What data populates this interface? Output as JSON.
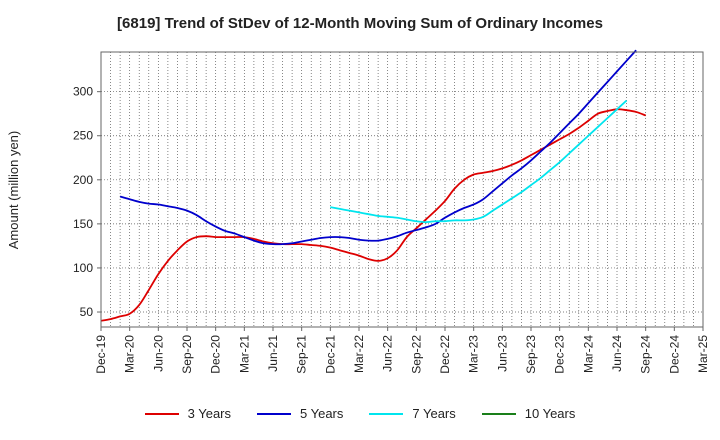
{
  "chart_data": {
    "type": "line",
    "title": "[6819]  Trend of StDev of 12-Month Moving Sum of Ordinary Incomes",
    "xlabel": "",
    "ylabel": "Amount (million yen)",
    "ylim": [
      33,
      345
    ],
    "x_start": "Dec-19",
    "x_end": "Mar-25",
    "x_tick_labels": [
      "Dec-19",
      "Mar-20",
      "Jun-20",
      "Sep-20",
      "Dec-20",
      "Mar-21",
      "Jun-21",
      "Sep-21",
      "Dec-21",
      "Mar-22",
      "Jun-22",
      "Sep-22",
      "Dec-22",
      "Mar-23",
      "Jun-23",
      "Sep-23",
      "Dec-23",
      "Mar-24",
      "Jun-24",
      "Sep-24",
      "Dec-24",
      "Mar-25"
    ],
    "y_ticks": [
      50,
      100,
      150,
      200,
      250,
      300
    ],
    "grid": true,
    "legend_position": "bottom",
    "series": [
      {
        "name": "3 Years",
        "color": "#dd0000",
        "points": [
          [
            0,
            40
          ],
          [
            1,
            42
          ],
          [
            2,
            45
          ],
          [
            3,
            48
          ],
          [
            4,
            58
          ],
          [
            5,
            75
          ],
          [
            6,
            93
          ],
          [
            7,
            108
          ],
          [
            8,
            120
          ],
          [
            9,
            130
          ],
          [
            10,
            135
          ],
          [
            11,
            136
          ],
          [
            12,
            135
          ],
          [
            13,
            135
          ],
          [
            14,
            135
          ],
          [
            15,
            135
          ],
          [
            16,
            133
          ],
          [
            17,
            130
          ],
          [
            18,
            128
          ],
          [
            19,
            127
          ],
          [
            20,
            127
          ],
          [
            21,
            127
          ],
          [
            22,
            126
          ],
          [
            23,
            125
          ],
          [
            24,
            123
          ],
          [
            25,
            120
          ],
          [
            26,
            117
          ],
          [
            27,
            114
          ],
          [
            28,
            110
          ],
          [
            29,
            108
          ],
          [
            30,
            111
          ],
          [
            31,
            120
          ],
          [
            32,
            135
          ],
          [
            33,
            145
          ],
          [
            34,
            155
          ],
          [
            35,
            165
          ],
          [
            36,
            176
          ],
          [
            37,
            190
          ],
          [
            38,
            200
          ],
          [
            39,
            206
          ],
          [
            40,
            208
          ],
          [
            41,
            210
          ],
          [
            42,
            213
          ],
          [
            43,
            217
          ],
          [
            44,
            222
          ],
          [
            45,
            228
          ],
          [
            46,
            234
          ],
          [
            47,
            240
          ],
          [
            48,
            246
          ],
          [
            49,
            252
          ],
          [
            50,
            259
          ],
          [
            51,
            267
          ],
          [
            52,
            275
          ],
          [
            53,
            278
          ],
          [
            54,
            280
          ],
          [
            55,
            279
          ],
          [
            56,
            277
          ],
          [
            57,
            273
          ]
        ]
      },
      {
        "name": "5 Years",
        "color": "#0000cc",
        "points": [
          [
            2,
            181
          ],
          [
            3,
            178
          ],
          [
            4,
            175
          ],
          [
            5,
            173
          ],
          [
            6,
            172
          ],
          [
            7,
            170
          ],
          [
            8,
            168
          ],
          [
            9,
            165
          ],
          [
            10,
            160
          ],
          [
            11,
            153
          ],
          [
            12,
            147
          ],
          [
            13,
            142
          ],
          [
            14,
            139
          ],
          [
            15,
            135
          ],
          [
            16,
            131
          ],
          [
            17,
            128
          ],
          [
            18,
            127
          ],
          [
            19,
            127
          ],
          [
            20,
            128
          ],
          [
            21,
            130
          ],
          [
            22,
            132
          ],
          [
            23,
            134
          ],
          [
            24,
            135
          ],
          [
            25,
            135
          ],
          [
            26,
            134
          ],
          [
            27,
            132
          ],
          [
            28,
            131
          ],
          [
            29,
            131
          ],
          [
            30,
            133
          ],
          [
            31,
            136
          ],
          [
            32,
            140
          ],
          [
            33,
            143
          ],
          [
            34,
            146
          ],
          [
            35,
            150
          ],
          [
            36,
            157
          ],
          [
            37,
            163
          ],
          [
            38,
            168
          ],
          [
            39,
            172
          ],
          [
            40,
            178
          ],
          [
            41,
            187
          ],
          [
            42,
            196
          ],
          [
            43,
            205
          ],
          [
            44,
            213
          ],
          [
            45,
            222
          ],
          [
            46,
            232
          ],
          [
            47,
            242
          ],
          [
            48,
            253
          ],
          [
            49,
            264
          ],
          [
            50,
            275
          ],
          [
            51,
            287
          ],
          [
            52,
            299
          ],
          [
            53,
            311
          ],
          [
            54,
            323
          ],
          [
            55,
            335
          ],
          [
            56,
            347
          ]
        ]
      },
      {
        "name": "7 Years",
        "color": "#00e5ee",
        "points": [
          [
            24,
            169
          ],
          [
            25,
            167
          ],
          [
            26,
            165
          ],
          [
            27,
            163
          ],
          [
            28,
            161
          ],
          [
            29,
            159
          ],
          [
            30,
            158
          ],
          [
            31,
            157
          ],
          [
            32,
            155
          ],
          [
            33,
            153
          ],
          [
            34,
            152
          ],
          [
            35,
            153
          ],
          [
            36,
            153
          ],
          [
            37,
            154
          ],
          [
            38,
            154
          ],
          [
            39,
            155
          ],
          [
            40,
            158
          ],
          [
            41,
            165
          ],
          [
            42,
            172
          ],
          [
            43,
            179
          ],
          [
            44,
            186
          ],
          [
            45,
            194
          ],
          [
            46,
            202
          ],
          [
            47,
            211
          ],
          [
            48,
            220
          ],
          [
            49,
            230
          ],
          [
            50,
            240
          ],
          [
            51,
            250
          ],
          [
            52,
            260
          ],
          [
            53,
            270
          ],
          [
            54,
            280
          ],
          [
            55,
            290
          ]
        ]
      },
      {
        "name": "10 Years",
        "color": "#1a7f1a",
        "points": []
      }
    ]
  }
}
